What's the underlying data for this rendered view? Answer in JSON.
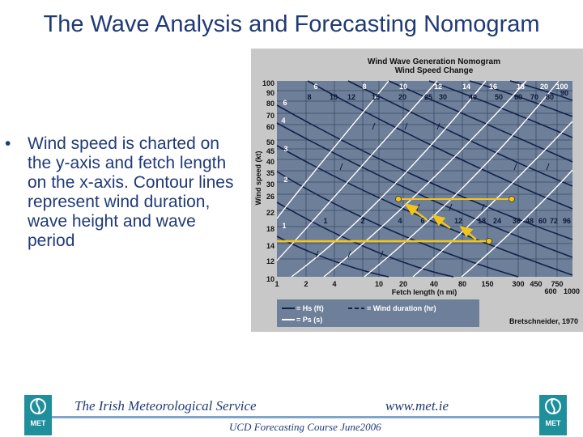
{
  "slide": {
    "title": "The Wave Analysis and Forecasting Nomogram",
    "bullet": "Wind speed is charted on the y-axis and fetch length on the x-axis. Contour lines represent wind duration, wave height and wave period",
    "bullet_marker": "•"
  },
  "footer": {
    "org": "The Irish Meteorological Service",
    "url": "www.met.ie",
    "course": "UCD Forecasting Course June2006",
    "logo_text": "MET"
  },
  "nomogram": {
    "title_line1": "Wind Wave Generation Nomogram",
    "title_line2": "Wind Speed Change",
    "y_axis_label": "Wind speed (kt)",
    "x_axis_label": "Fetch length (n mi)",
    "y_ticks": [
      "100",
      "90",
      "80",
      "70",
      "60",
      "50",
      "45",
      "40",
      "35",
      "30",
      "26",
      "22",
      "18",
      "14",
      "12",
      "10"
    ],
    "x_ticks_top": [
      "1",
      "2",
      "4",
      "10",
      "20",
      "40",
      "80",
      "150",
      "300",
      "450",
      "750"
    ],
    "x_ticks_bottom": [
      "600",
      "1000"
    ],
    "top_duration_labels": [
      "6",
      "8",
      "10",
      "12",
      "14",
      "16",
      "18",
      "20",
      "100"
    ],
    "top_hs_labels": [
      "8",
      "10",
      "12",
      "15",
      "20",
      "25",
      "30",
      "40",
      "50",
      "60",
      "70",
      "80",
      "90"
    ],
    "inside_period_labels": [
      "1",
      "2",
      "4",
      "6",
      "12",
      "18",
      "24",
      "36",
      "48",
      "60",
      "72",
      "96"
    ],
    "left_hs_labels": [
      "6",
      "4",
      "3",
      "2",
      "1"
    ],
    "legend_hs": "= Hs (ft)",
    "legend_ps": "= Ps (s)",
    "legend_duration": "= Wind duration (hr)",
    "source": "Bretschneider, 1970",
    "colors": {
      "panel": "#c8c8c8",
      "grid_bg": "#6e7f99",
      "hs_line": "#13214a",
      "ps_line": "#ffffff",
      "highlight": "#f2c518",
      "arrow": "#f2c518"
    }
  }
}
